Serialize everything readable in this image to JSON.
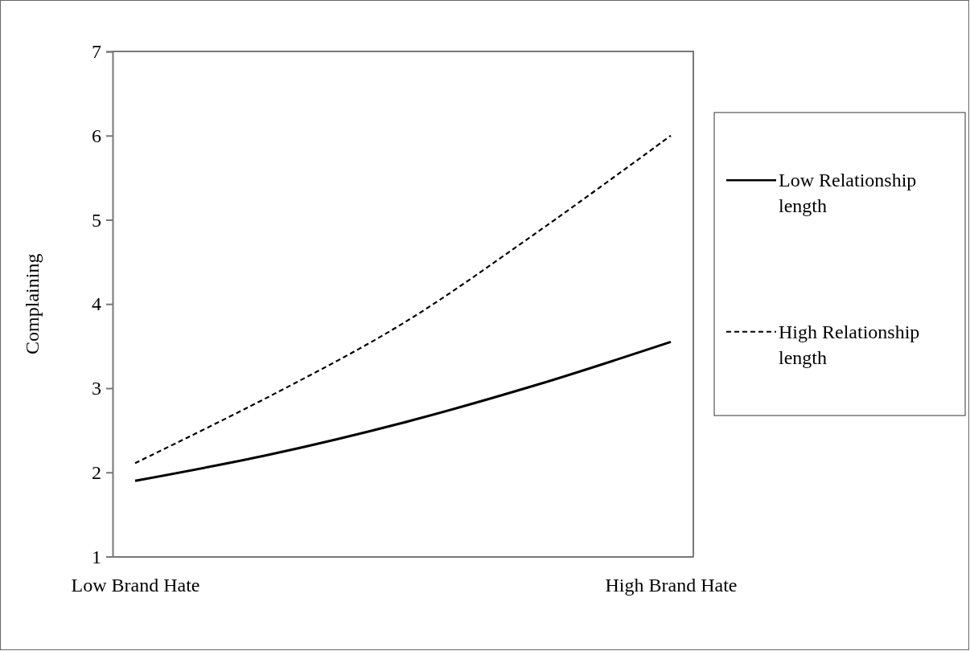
{
  "chart_data": {
    "type": "line",
    "ylabel": "Complaining",
    "categories": [
      "Low Brand Hate",
      null,
      null,
      null,
      "High Brand Hate"
    ],
    "ylim": [
      1,
      7
    ],
    "yticks": [
      1,
      2,
      3,
      4,
      5,
      6,
      7
    ],
    "grid": false,
    "legend": "right",
    "marker": "none",
    "series": [
      {
        "name": "Low Relationship length",
        "color": "#000000",
        "line_style": "solid",
        "values": [
          1.9,
          2.21,
          2.59,
          3.04,
          3.55
        ]
      },
      {
        "name": "High Relationship length",
        "color": "#000000",
        "line_style": "dashed",
        "values": [
          2.11,
          2.9,
          3.77,
          4.85,
          6.0
        ]
      }
    ]
  }
}
